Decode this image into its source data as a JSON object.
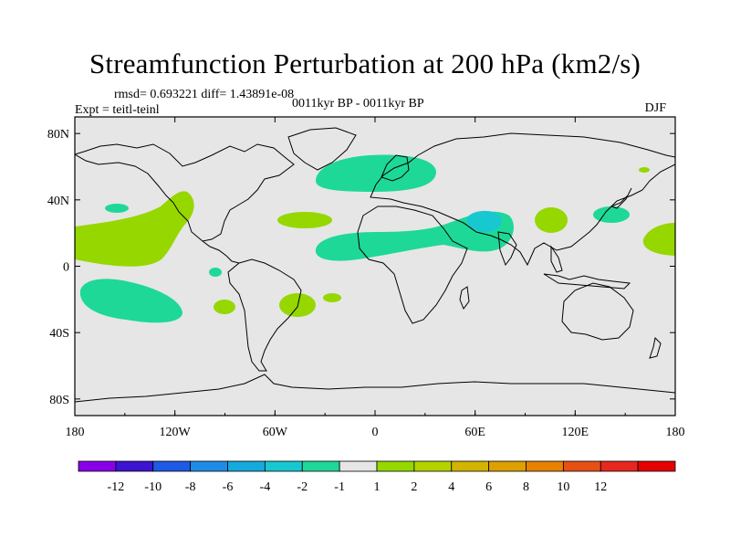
{
  "title": "Streamfunction Perturbation at 200 hPa (km2/s)",
  "stats_line": "rmsd= 0.693221  diff= 1.43891e-08",
  "experiment": "Expt = teitl-teinl",
  "period": "0011kyr BP - 0011kyr BP",
  "season": "DJF",
  "colors": {
    "ocean_background": "#e6e6e6",
    "neg_minus2": "#1ed897",
    "neg_minus4": "#18c8d0",
    "pos_2": "#96d700"
  },
  "axes": {
    "x_ticks": [
      "180",
      "120W",
      "60W",
      "0",
      "60E",
      "120E",
      "180"
    ],
    "y_ticks": [
      "80N",
      "40N",
      "0",
      "40S",
      "80S"
    ]
  },
  "colorbar": {
    "colors": [
      "#8a00e6",
      "#3c14d2",
      "#1e5ae6",
      "#1e8ce6",
      "#14aadc",
      "#18c8d0",
      "#1ed897",
      "#e6e6e6",
      "#96d700",
      "#b4d200",
      "#d2b400",
      "#dca000",
      "#e68200",
      "#e65014",
      "#e6281e",
      "#e60000"
    ],
    "labels": [
      "-12",
      "-10",
      "-8",
      "-6",
      "-4",
      "-2",
      "-1",
      "1",
      "2",
      "4",
      "6",
      "8",
      "10",
      "12"
    ]
  }
}
